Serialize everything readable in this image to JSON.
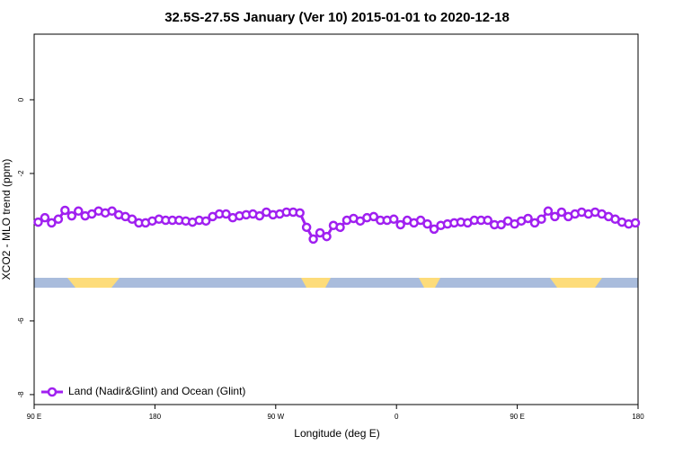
{
  "chart_data": {
    "type": "line",
    "title": "32.5S-27.5S January (Ver 10)   2015-01-01 to 2020-12-18",
    "x_label": "Longitude (deg E)",
    "y_label": "XCO2 - MLO trend (ppm)",
    "xlim": [
      90,
      540
    ],
    "ylim": [
      -8.27,
      1.78
    ],
    "xticks": [
      {
        "value": 90,
        "label": "90 E"
      },
      {
        "value": 180,
        "label": "180"
      },
      {
        "value": 270,
        "label": "90 W"
      },
      {
        "value": 360,
        "label": "0"
      },
      {
        "value": 450,
        "label": "90 E"
      },
      {
        "value": 540,
        "label": "180"
      }
    ],
    "yticks": [
      0,
      -2,
      -6,
      -8
    ],
    "legend": "bottomleft",
    "x": [
      93,
      98,
      103,
      108,
      113,
      118,
      123,
      128,
      133,
      138,
      143,
      148,
      153,
      158,
      163,
      168,
      173,
      178,
      183,
      188,
      193,
      198,
      203,
      208,
      213,
      218,
      223,
      228,
      233,
      238,
      243,
      248,
      253,
      258,
      263,
      268,
      273,
      278,
      283,
      288,
      293,
      298,
      303,
      308,
      313,
      318,
      323,
      328,
      333,
      338,
      343,
      348,
      353,
      358,
      363,
      368,
      373,
      378,
      383,
      388,
      393,
      398,
      403,
      408,
      413,
      418,
      423,
      428,
      433,
      438,
      443,
      448,
      453,
      458,
      463,
      468,
      473,
      478,
      483,
      488,
      493,
      498,
      503,
      508,
      513,
      518,
      523,
      528,
      533,
      538
    ],
    "series": [
      {
        "name": "Land (Nadir&Glint) and Ocean (Glint)",
        "color": "#a020f0",
        "values": [
          -3.32,
          -3.2,
          -3.34,
          -3.24,
          -3.0,
          -3.15,
          -3.02,
          -3.15,
          -3.1,
          -3.02,
          -3.07,
          -3.02,
          -3.12,
          -3.17,
          -3.24,
          -3.34,
          -3.34,
          -3.29,
          -3.24,
          -3.27,
          -3.27,
          -3.27,
          -3.29,
          -3.32,
          -3.27,
          -3.29,
          -3.17,
          -3.1,
          -3.1,
          -3.2,
          -3.15,
          -3.12,
          -3.1,
          -3.15,
          -3.05,
          -3.12,
          -3.1,
          -3.05,
          -3.05,
          -3.07,
          -3.46,
          -3.78,
          -3.61,
          -3.71,
          -3.41,
          -3.46,
          -3.27,
          -3.22,
          -3.29,
          -3.2,
          -3.17,
          -3.27,
          -3.27,
          -3.24,
          -3.39,
          -3.27,
          -3.34,
          -3.27,
          -3.37,
          -3.51,
          -3.41,
          -3.37,
          -3.34,
          -3.32,
          -3.34,
          -3.27,
          -3.27,
          -3.27,
          -3.39,
          -3.39,
          -3.29,
          -3.37,
          -3.29,
          -3.22,
          -3.34,
          -3.24,
          -3.02,
          -3.17,
          -3.05,
          -3.17,
          -3.1,
          -3.05,
          -3.1,
          -3.05,
          -3.1,
          -3.17,
          -3.24,
          -3.32,
          -3.37,
          -3.34
        ]
      }
    ]
  }
}
